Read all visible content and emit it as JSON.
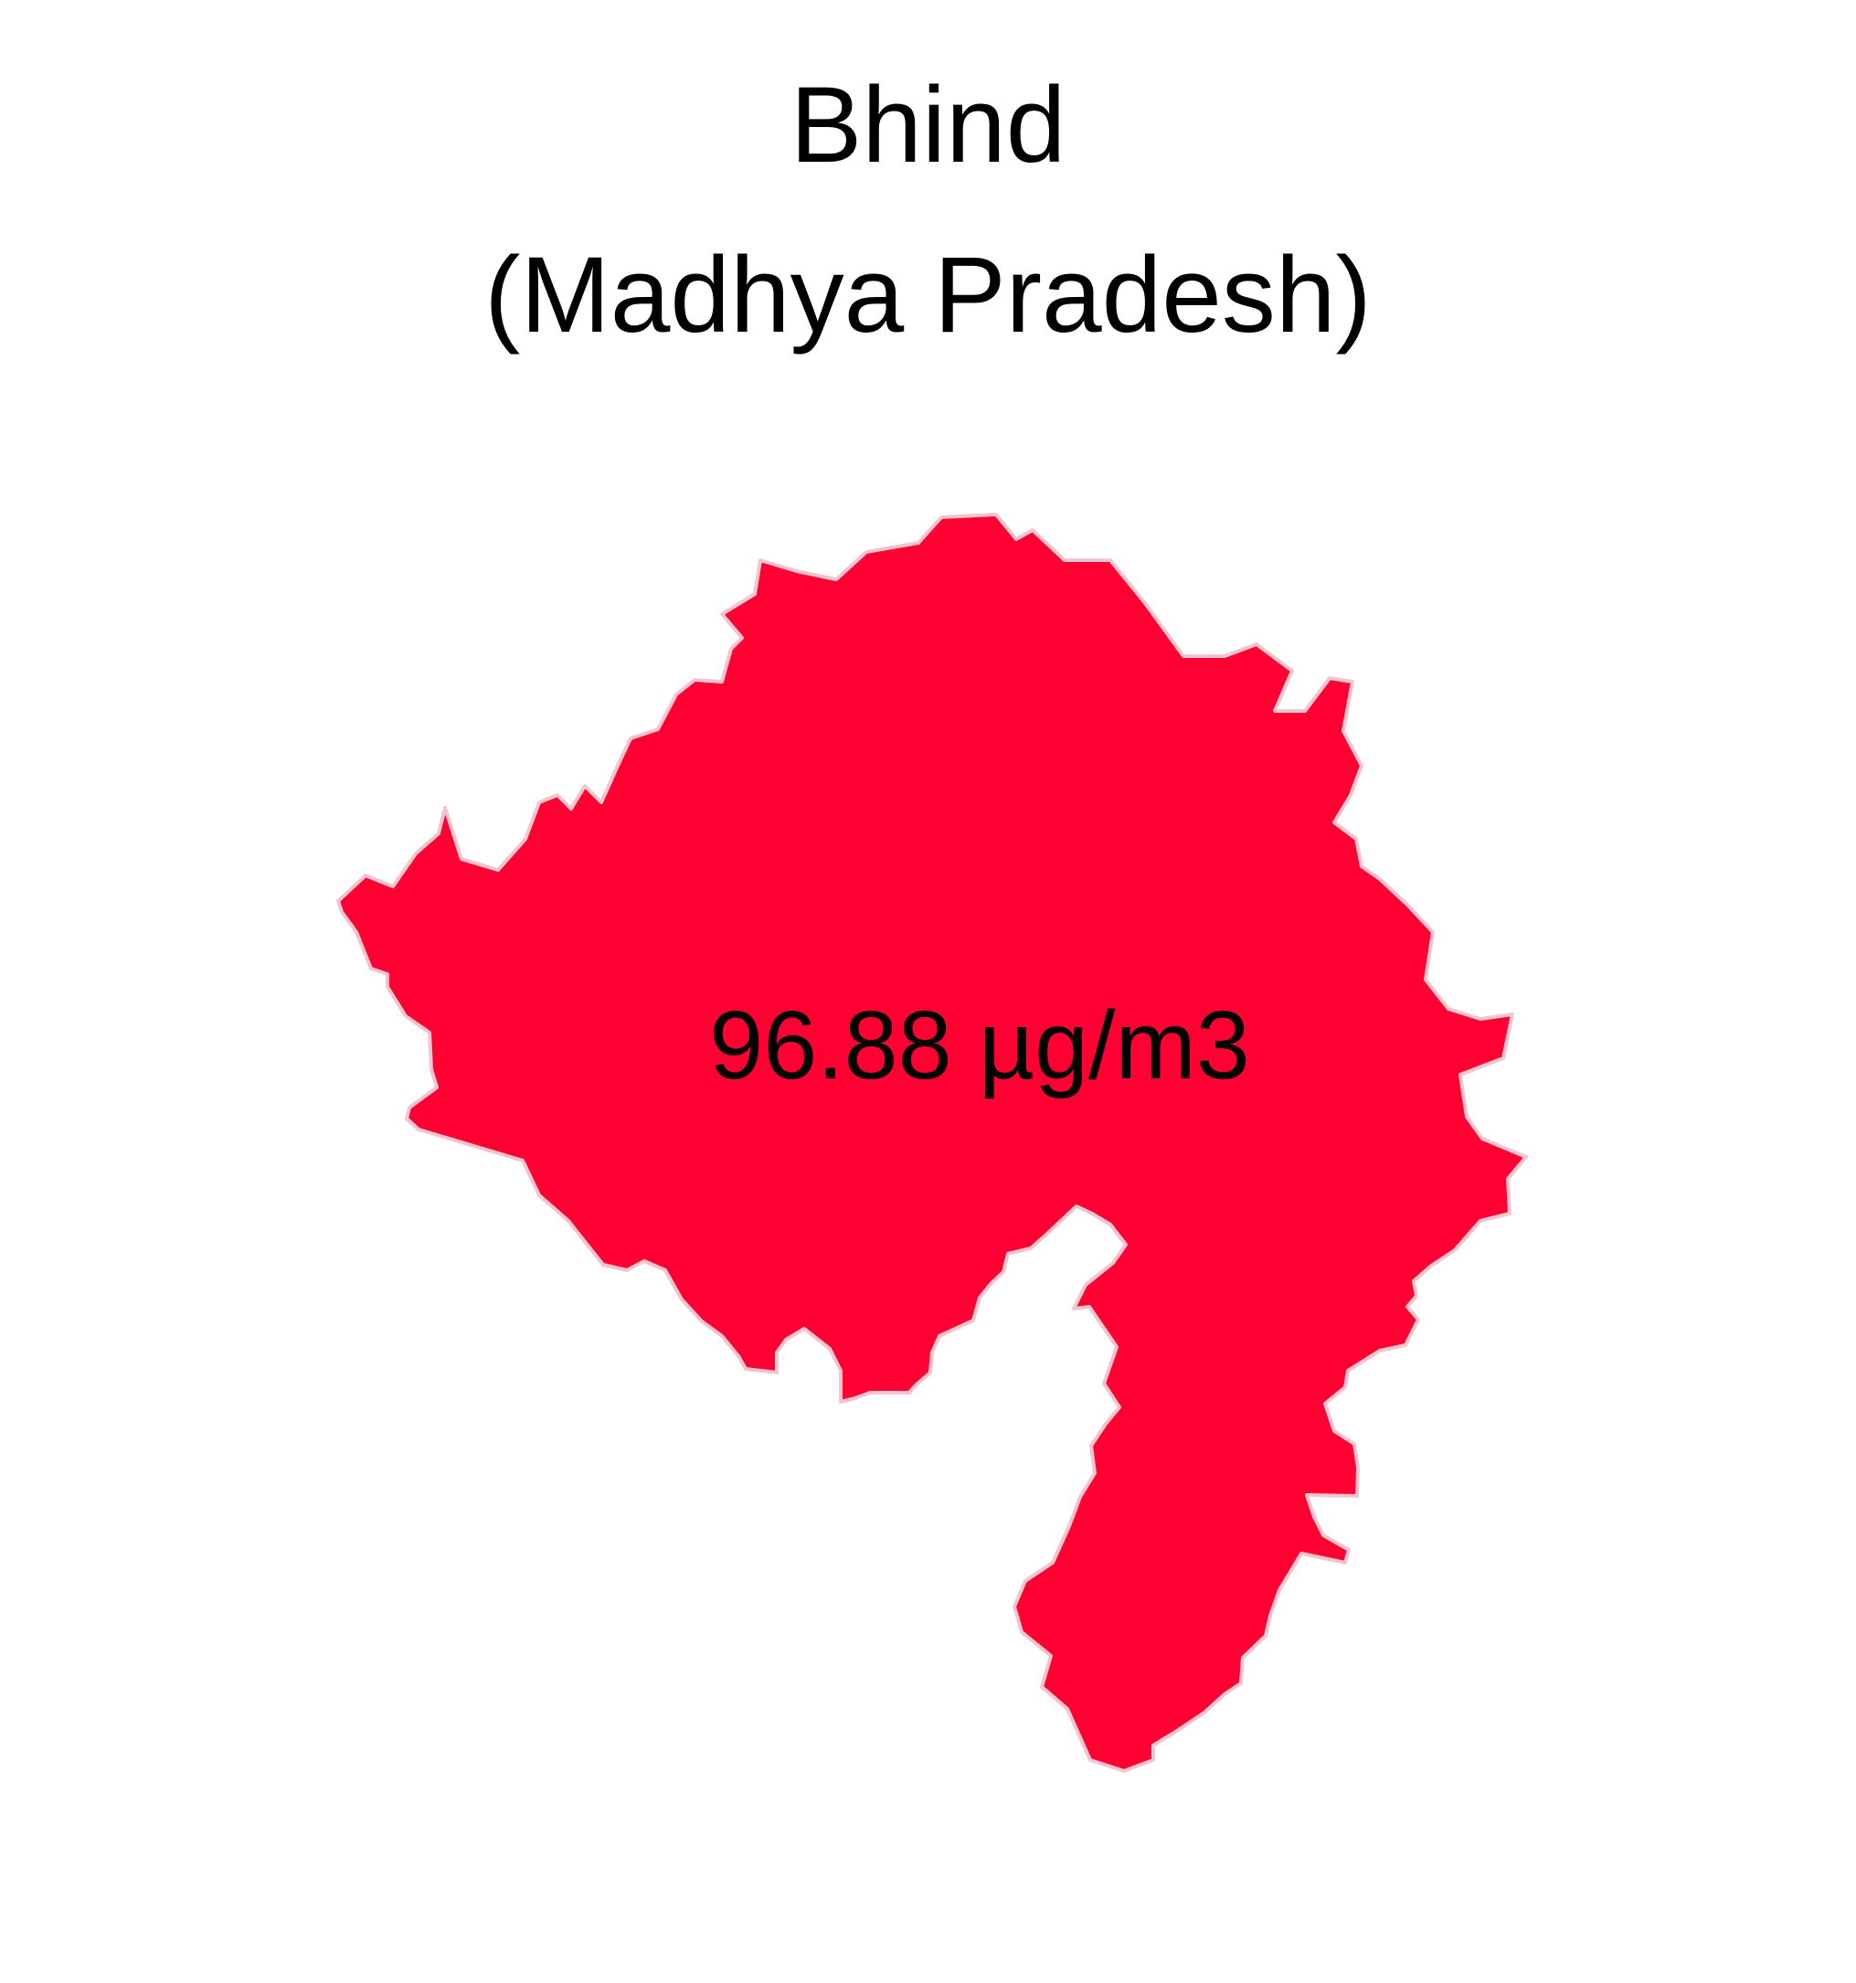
{
  "map": {
    "title": "Bhind",
    "subtitle": "(Madhya Pradesh)",
    "value_label": "96.88 µg/m3",
    "region_fill": "#FF0033",
    "region_stroke": "#F3C6CF"
  }
}
